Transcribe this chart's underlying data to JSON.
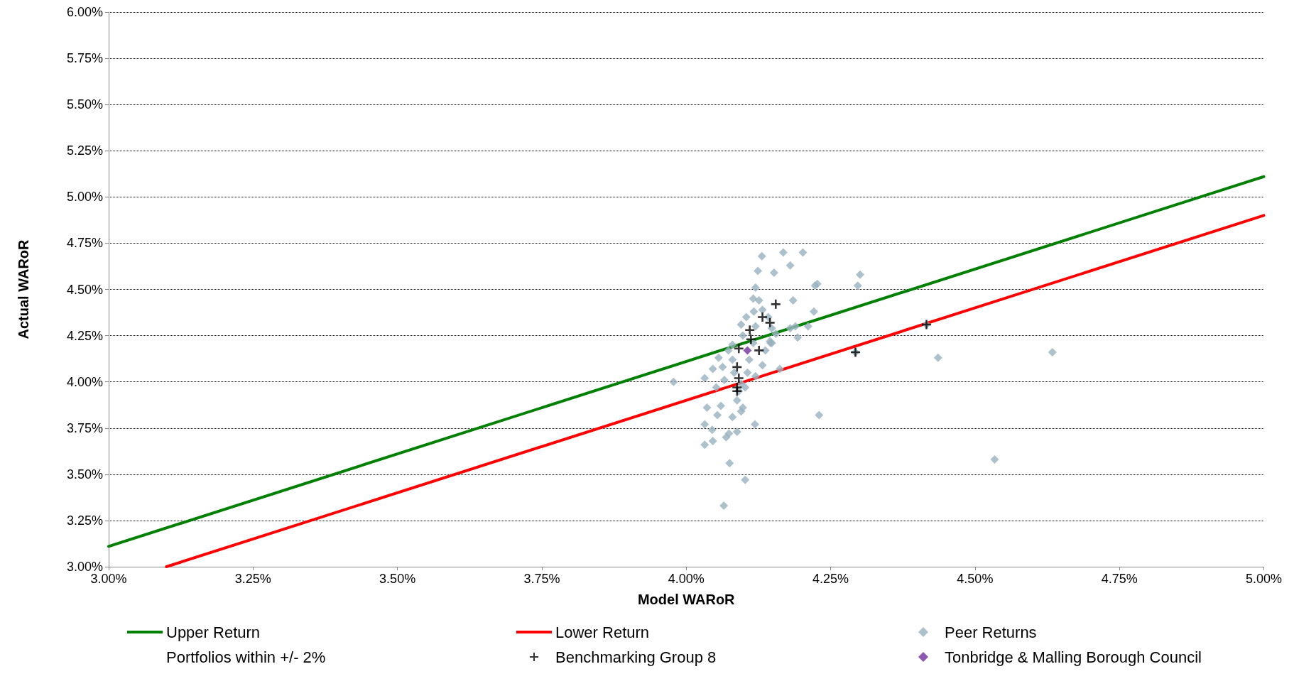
{
  "chart_data": {
    "type": "scatter",
    "xlabel": "Model WARoR",
    "ylabel": "Actual WARoR",
    "xlim": [
      3,
      5
    ],
    "ylim": [
      3,
      6
    ],
    "xticks": [
      {
        "value": 3,
        "label": "3.00%"
      },
      {
        "value": 3.25,
        "label": "3.25%"
      },
      {
        "value": 3.5,
        "label": "3.50%"
      },
      {
        "value": 3.75,
        "label": "3.75%"
      },
      {
        "value": 4,
        "label": "4.00%"
      },
      {
        "value": 4.25,
        "label": "4.25%"
      },
      {
        "value": 4.5,
        "label": "4.50%"
      },
      {
        "value": 4.75,
        "label": "4.75%"
      },
      {
        "value": 5,
        "label": "5.00%"
      }
    ],
    "yticks": [
      {
        "value": 3,
        "label": "3.00%"
      },
      {
        "value": 3.25,
        "label": "3.25%"
      },
      {
        "value": 3.5,
        "label": "3.50%"
      },
      {
        "value": 3.75,
        "label": "3.75%"
      },
      {
        "value": 4,
        "label": "4.00%"
      },
      {
        "value": 4.25,
        "label": "4.25%"
      },
      {
        "value": 4.5,
        "label": "4.50%"
      },
      {
        "value": 4.75,
        "label": "4.75%"
      },
      {
        "value": 5,
        "label": "5.00%"
      },
      {
        "value": 5.25,
        "label": "5.25%"
      },
      {
        "value": 5.5,
        "label": "5.50%"
      },
      {
        "value": 5.75,
        "label": "5.75%"
      },
      {
        "value": 6,
        "label": "6.00%"
      }
    ],
    "grid": "y",
    "legend": "bottom",
    "series": [
      {
        "name": "Upper Return",
        "type": "line",
        "color": "#008000",
        "marker": "none",
        "x": [
          3,
          5
        ],
        "values": [
          3.11,
          5.11
        ]
      },
      {
        "name": "Lower Return",
        "type": "line",
        "color": "#ff0000",
        "marker": "none",
        "x": [
          3.1,
          5
        ],
        "values": [
          3.0,
          4.9
        ]
      },
      {
        "name": "Peer Returns",
        "color": "#97b2bf",
        "marker": "diamond",
        "x": [
          3.978,
          4.032,
          4.036,
          4.032,
          4.032,
          4.045,
          4.046,
          4.054,
          4.06,
          4.075,
          4.065,
          4.102,
          4.119,
          4.074,
          4.069,
          4.08,
          4.088,
          4.095,
          4.098,
          4.088,
          4.052,
          4.046,
          4.056,
          4.063,
          4.073,
          4.08,
          4.083,
          4.095,
          4.102,
          4.106,
          4.109,
          4.116,
          4.12,
          4.117,
          4.12,
          4.116,
          4.124,
          4.131,
          4.126,
          4.132,
          4.142,
          4.148,
          4.155,
          4.146,
          4.137,
          4.132,
          4.12,
          4.145,
          4.152,
          4.168,
          4.18,
          4.202,
          4.185,
          4.18,
          4.189,
          4.193,
          4.211,
          4.221,
          4.223,
          4.227,
          4.23,
          4.162,
          4.148,
          4.297,
          4.301,
          4.293,
          4.416,
          4.436,
          4.534,
          4.634,
          4.098,
          4.095,
          4.104,
          4.08,
          4.066,
          4.091
        ],
        "values": [
          4.0,
          4.02,
          3.86,
          3.77,
          3.66,
          3.74,
          3.68,
          3.82,
          3.87,
          3.56,
          3.33,
          3.47,
          3.77,
          3.72,
          3.7,
          3.81,
          3.73,
          3.84,
          3.86,
          3.9,
          3.97,
          4.07,
          4.13,
          4.08,
          4.17,
          4.2,
          4.05,
          3.99,
          3.97,
          4.05,
          4.12,
          4.21,
          4.3,
          4.38,
          4.51,
          4.45,
          4.6,
          4.68,
          4.44,
          4.39,
          4.35,
          4.29,
          4.26,
          4.21,
          4.17,
          4.09,
          4.03,
          4.22,
          4.59,
          4.7,
          4.63,
          4.7,
          4.44,
          4.29,
          4.3,
          4.24,
          4.3,
          4.38,
          4.52,
          4.53,
          3.82,
          4.07,
          4.21,
          4.52,
          4.58,
          4.16,
          4.31,
          4.13,
          3.58,
          4.16,
          4.25,
          4.31,
          4.35,
          4.12,
          4.01,
          3.95
        ]
      },
      {
        "name": "Portfolios within +/- 2%",
        "marker": "none"
      },
      {
        "name": "Benchmarking Group 8",
        "color": "#000000",
        "marker": "cross",
        "x": [
          4.155,
          4.132,
          4.145,
          4.11,
          4.112,
          4.091,
          4.106,
          4.126,
          4.088,
          4.091,
          4.088,
          4.088,
          4.293,
          4.416
        ],
        "values": [
          4.42,
          4.35,
          4.32,
          4.28,
          4.23,
          4.18,
          null,
          4.17,
          4.08,
          4.02,
          3.97,
          3.95,
          4.16,
          4.31
        ]
      },
      {
        "name": "Tonbridge & Malling Borough Council",
        "color": "#7030a0",
        "marker": "diamond",
        "x": [
          4.106
        ],
        "values": [
          4.17
        ]
      }
    ]
  }
}
